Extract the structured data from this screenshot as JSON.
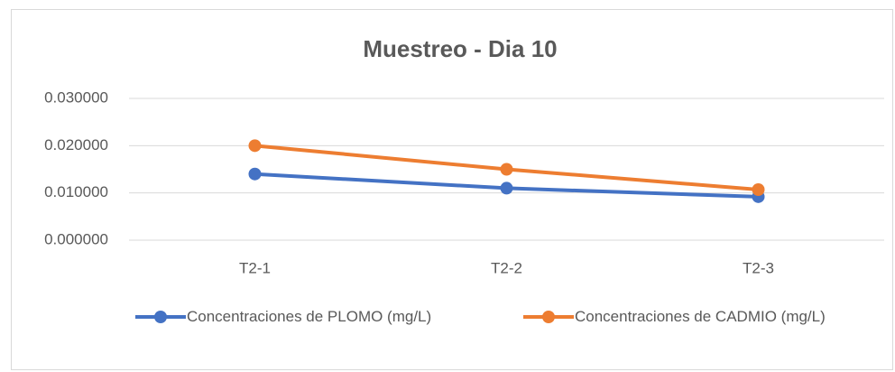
{
  "chart_data": {
    "type": "line",
    "title": "Muestreo - Dia 10",
    "categories": [
      "T2-1",
      "T2-2",
      "T2-3"
    ],
    "series": [
      {
        "name": "Concentraciones de PLOMO (mg/L)",
        "color": "#4472c4",
        "values": [
          0.014,
          0.011,
          0.0092
        ]
      },
      {
        "name": "Concentraciones de CADMIO (mg/L)",
        "color": "#ed7d31",
        "values": [
          0.02,
          0.015,
          0.0107
        ]
      }
    ],
    "ylim": [
      0,
      0.03
    ],
    "yticks": [
      {
        "value": 0,
        "label": "0.000000"
      },
      {
        "value": 0.01,
        "label": "0.010000"
      },
      {
        "value": 0.02,
        "label": "0.020000"
      },
      {
        "value": 0.03,
        "label": "0.030000"
      }
    ],
    "grid": true,
    "legend": "bottom"
  }
}
